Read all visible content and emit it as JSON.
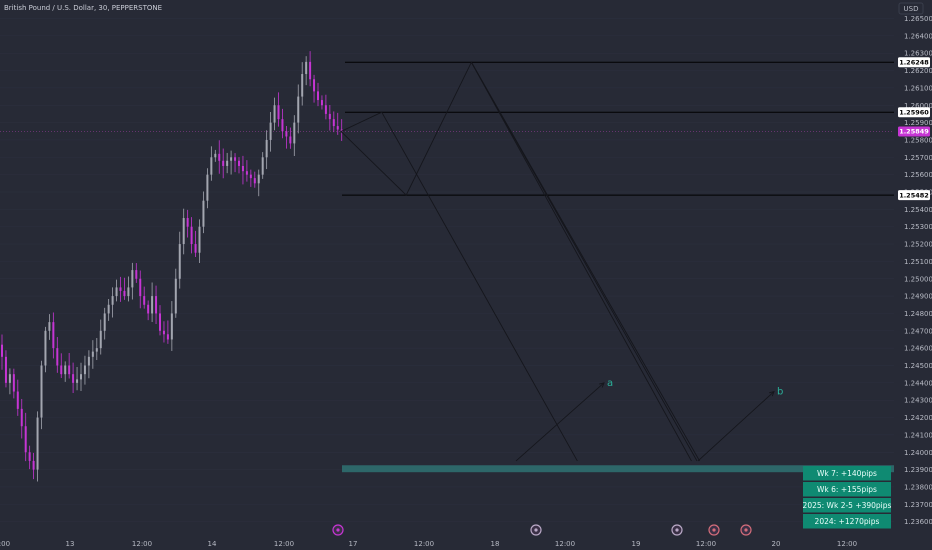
{
  "chart_data": {
    "type": "candlestick",
    "title": "British Pound / U.S. Dollar, 30, PEPPERSTONE",
    "currency": "USD",
    "ylim": [
      1.2355,
      1.2655
    ],
    "y_ticks": [
      1.265,
      1.264,
      1.263,
      1.262,
      1.261,
      1.26,
      1.259,
      1.258,
      1.257,
      1.256,
      1.255,
      1.254,
      1.253,
      1.252,
      1.251,
      1.25,
      1.249,
      1.248,
      1.247,
      1.246,
      1.245,
      1.244,
      1.243,
      1.242,
      1.241,
      1.24,
      1.239,
      1.238,
      1.237,
      1.236
    ],
    "x_labels": [
      "12:00",
      "13",
      "12:00",
      "14",
      "12:00",
      "17",
      "12:00",
      "18",
      "12:00",
      "19",
      "12:00",
      "20",
      "12:00"
    ],
    "price_tags": [
      {
        "label": "1.26248",
        "value": 1.26248,
        "bg": "#ffffff",
        "fg": "#000000"
      },
      {
        "label": "1.25960",
        "value": 1.2596,
        "bg": "#ffffff",
        "fg": "#000000"
      },
      {
        "label": "1.25849",
        "value": 1.25849,
        "bg": "#c635d4",
        "fg": "#ffffff"
      },
      {
        "label": "1.25482",
        "value": 1.25482,
        "bg": "#ffffff",
        "fg": "#000000"
      }
    ],
    "horizontal_levels": [
      1.26248,
      1.2596,
      1.25482
    ],
    "target_zone": [
      1.23925,
      1.23885
    ],
    "candles_close_series": [
      1.2455,
      1.244,
      1.2445,
      1.2435,
      1.2425,
      1.2415,
      1.24,
      1.2395,
      1.239,
      1.242,
      1.245,
      1.247,
      1.2475,
      1.246,
      1.245,
      1.2445,
      1.245,
      1.2445,
      1.244,
      1.2442,
      1.2445,
      1.245,
      1.2455,
      1.2458,
      1.246,
      1.247,
      1.248,
      1.2485,
      1.249,
      1.2495,
      1.2493,
      1.249,
      1.2495,
      1.2505,
      1.25,
      1.249,
      1.2485,
      1.248,
      1.249,
      1.248,
      1.247,
      1.2468,
      1.2465,
      1.248,
      1.25,
      1.252,
      1.2535,
      1.253,
      1.252,
      1.2515,
      1.253,
      1.2545,
      1.256,
      1.257,
      1.2572,
      1.2568,
      1.2565,
      1.2568,
      1.257,
      1.2568,
      1.2565,
      1.2562,
      1.256,
      1.2558,
      1.2555,
      1.256,
      1.257,
      1.258,
      1.259,
      1.26,
      1.2592,
      1.2585,
      1.2582,
      1.2578,
      1.259,
      1.2605,
      1.2618,
      1.2625,
      1.2615,
      1.2608,
      1.2603,
      1.26,
      1.2595,
      1.2592,
      1.2588,
      1.2586,
      1.2585
    ],
    "projection_paths": [
      [
        [
          0,
          1.25849
        ],
        [
          8,
          1.25482
        ],
        [
          16,
          1.26248
        ],
        [
          43,
          1.2395
        ]
      ],
      [
        [
          0,
          1.25849
        ],
        [
          5,
          1.2596
        ],
        [
          29,
          1.2395
        ]
      ]
    ],
    "waves": [
      {
        "label": "a",
        "from": [
          29,
          1.2395
        ],
        "to": [
          44,
          1.244
        ]
      },
      {
        "label": "b",
        "from": [
          61,
          1.2395
        ],
        "to": [
          76,
          1.2435
        ]
      }
    ],
    "stats": [
      "Wk 7: +140pips",
      "Wk 6: +155pips",
      "2025: Wk 2-5  +390pips",
      "2024: +1270pips"
    ]
  }
}
